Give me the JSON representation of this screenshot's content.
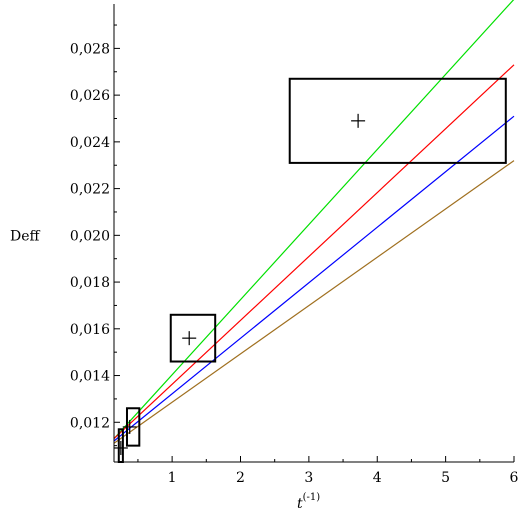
{
  "chart_data": {
    "type": "line",
    "title": "",
    "xlabel": "t",
    "xlabel_superscript": "(-1)",
    "ylabel": "Deff",
    "xlim": [
      0.15,
      6.0
    ],
    "ylim": [
      0.0103,
      0.0299
    ],
    "x_ticks": [
      1,
      2,
      3,
      4,
      5,
      6
    ],
    "x_tick_labels": [
      "1",
      "2",
      "3",
      "4",
      "5",
      "6"
    ],
    "y_ticks": [
      0.012,
      0.014,
      0.016,
      0.018,
      0.02,
      0.022,
      0.024,
      0.026,
      0.028
    ],
    "y_tick_labels": [
      "0,012",
      "0,014",
      "0,016",
      "0,018",
      "0,020",
      "0,022",
      "0,024",
      "0,026",
      "0,028"
    ],
    "grid": false,
    "legend": "none",
    "y_axis_at_x": 0.15,
    "series": [
      {
        "color": "#00e000",
        "x": [
          0.15,
          6.0
        ],
        "y": [
          0.0113,
          0.0301
        ]
      },
      {
        "color": "#ff0000",
        "x": [
          0.15,
          6.0
        ],
        "y": [
          0.0113,
          0.0273
        ]
      },
      {
        "color": "#0000ff",
        "x": [
          0.15,
          6.0
        ],
        "y": [
          0.0112,
          0.0251
        ]
      },
      {
        "color": "#a07020",
        "x": [
          0.15,
          6.0
        ],
        "y": [
          0.0111,
          0.0232
        ]
      }
    ],
    "points": [
      {
        "x": 0.25,
        "y": 0.0109
      },
      {
        "x": 0.38,
        "y": 0.0118
      },
      {
        "x": 1.25,
        "y": 0.0156
      },
      {
        "x": 3.72,
        "y": 0.0249
      }
    ],
    "error_boxes": [
      {
        "x": [
          0.22,
          0.28
        ],
        "y": [
          0.0103,
          0.0117
        ]
      },
      {
        "x": [
          0.34,
          0.52
        ],
        "y": [
          0.011,
          0.0126
        ]
      },
      {
        "x": [
          0.98,
          1.63
        ],
        "y": [
          0.0146,
          0.0166
        ]
      },
      {
        "x": [
          2.72,
          5.88
        ],
        "y": [
          0.0231,
          0.0267
        ]
      }
    ]
  }
}
